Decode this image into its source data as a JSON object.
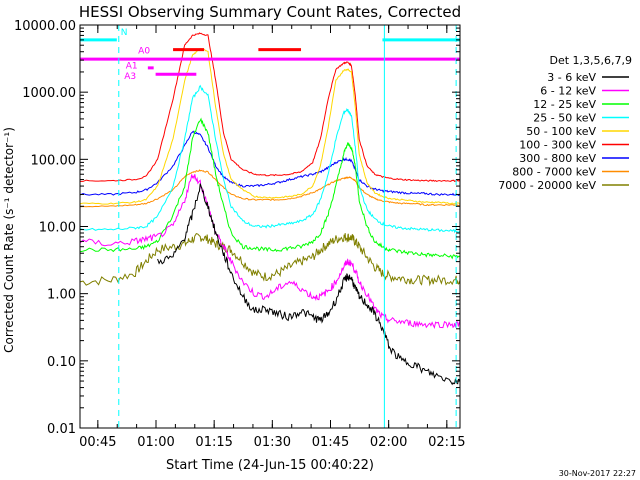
{
  "chart_data": {
    "type": "line",
    "title": "HESSI Observing Summary Count Rates, Corrected",
    "xlabel": "Start Time (24-Jun-15 00:40:22)",
    "ylabel": "Corrected Count Rate (s⁻¹ detector⁻¹)",
    "yscale": "log",
    "ylim": [
      0.01,
      10000
    ],
    "xlim_minutes_after_start": [
      0,
      98
    ],
    "x_tick_labels": [
      "00:45",
      "01:00",
      "01:15",
      "01:30",
      "01:45",
      "02:00",
      "02:15"
    ],
    "x_tick_minutes": [
      4.6,
      19.6,
      34.6,
      49.6,
      64.6,
      79.6,
      94.6
    ],
    "y_tick_labels": [
      "10000.00",
      "1000.00",
      "100.00",
      "10.00",
      "1.00",
      "0.10",
      "0.01"
    ],
    "y_tick_values": [
      10000,
      1000,
      100,
      10,
      1,
      0.1,
      0.01
    ],
    "legend_title": "Det 1,3,5,6,7,9",
    "legend_position": "right",
    "footer_date": "30-Nov-2017 22:27",
    "x": [
      0,
      8,
      14,
      17,
      20,
      24,
      27,
      29,
      31,
      33,
      35,
      37,
      39,
      42,
      45,
      48,
      51,
      54,
      57,
      60,
      62,
      64,
      66,
      68,
      69,
      70,
      71,
      72,
      74,
      76,
      78,
      80,
      83,
      86,
      89,
      92,
      96,
      98
    ],
    "series": [
      {
        "name": "3 - 6 keV",
        "color": "#000000",
        "values": [
          null,
          null,
          null,
          null,
          3,
          3.5,
          7,
          15,
          40,
          20,
          8,
          4,
          2,
          0.9,
          0.55,
          0.6,
          0.5,
          0.45,
          0.55,
          0.45,
          0.4,
          0.5,
          0.8,
          1.5,
          1.8,
          1.7,
          1.2,
          0.9,
          0.7,
          0.5,
          0.3,
          0.15,
          0.1,
          0.09,
          0.07,
          0.06,
          0.05,
          0.05
        ]
      },
      {
        "name": "6 - 12 keV",
        "color": "#ff00ff",
        "values": [
          6,
          5.5,
          6,
          6.5,
          7,
          10,
          25,
          60,
          45,
          20,
          8,
          5,
          3,
          1.5,
          1,
          0.9,
          1.2,
          1.5,
          1.2,
          0.9,
          0.9,
          1.1,
          1.5,
          2.5,
          3,
          2.8,
          2.2,
          1.5,
          1,
          0.6,
          0.45,
          0.4,
          0.38,
          0.36,
          0.35,
          0.35,
          0.35,
          0.35
        ]
      },
      {
        "name": "12 - 25 keV",
        "color": "#00ff00",
        "values": [
          4.5,
          4.5,
          4.6,
          5,
          6,
          15,
          40,
          200,
          400,
          250,
          60,
          20,
          8,
          5,
          4.8,
          4.5,
          4.5,
          4.8,
          5,
          6,
          8,
          15,
          40,
          120,
          170,
          150,
          80,
          25,
          10,
          6,
          5,
          4.5,
          4.2,
          4,
          3.8,
          3.7,
          3.6,
          3.6
        ]
      },
      {
        "name": "25 - 50 keV",
        "color": "#00ffff",
        "values": [
          9,
          9,
          9.5,
          10,
          14,
          40,
          200,
          800,
          1200,
          900,
          200,
          50,
          20,
          12,
          10,
          10,
          10.5,
          11,
          12,
          15,
          25,
          60,
          200,
          500,
          550,
          450,
          150,
          40,
          18,
          13,
          11,
          10,
          9.5,
          9.2,
          9,
          8.8,
          8.6,
          8.5
        ]
      },
      {
        "name": "50 - 100 keV",
        "color": "#ffd700",
        "values": [
          22,
          22,
          23,
          25,
          40,
          200,
          1500,
          3500,
          4500,
          4000,
          600,
          120,
          50,
          35,
          28,
          27,
          27,
          28,
          30,
          40,
          80,
          300,
          1500,
          2100,
          2200,
          2000,
          600,
          120,
          45,
          32,
          28,
          26,
          25,
          24,
          23,
          23,
          22,
          22
        ]
      },
      {
        "name": "100 - 300 keV",
        "color": "#ff0000",
        "values": [
          48,
          48,
          50,
          55,
          100,
          800,
          5000,
          7000,
          7500,
          7000,
          1500,
          250,
          100,
          70,
          60,
          58,
          58,
          60,
          65,
          90,
          200,
          800,
          2200,
          2700,
          2800,
          2500,
          900,
          200,
          80,
          60,
          55,
          52,
          50,
          49,
          48,
          48,
          48,
          48
        ]
      },
      {
        "name": "300 - 800 keV",
        "color": "#0000ff",
        "values": [
          30,
          30,
          32,
          35,
          45,
          80,
          160,
          260,
          230,
          150,
          80,
          55,
          45,
          40,
          40,
          42,
          45,
          50,
          55,
          60,
          65,
          75,
          90,
          100,
          100,
          95,
          70,
          50,
          40,
          36,
          34,
          33,
          32,
          31,
          31,
          30,
          30,
          30
        ]
      },
      {
        "name": "800 - 7000 keV",
        "color": "#ff8c00",
        "values": [
          20,
          20,
          21,
          22,
          26,
          35,
          55,
          65,
          68,
          65,
          50,
          38,
          30,
          26,
          25,
          25,
          25,
          26,
          28,
          32,
          36,
          42,
          48,
          52,
          54,
          53,
          48,
          38,
          30,
          26,
          24,
          23,
          22,
          22,
          21,
          21,
          21,
          21
        ]
      },
      {
        "name": "7000 - 20000 keV",
        "color": "#808000",
        "values": [
          1.5,
          1.6,
          2,
          3,
          4.5,
          5,
          5.5,
          6.5,
          7,
          6.5,
          5.5,
          5,
          4.5,
          3,
          2,
          1.8,
          2,
          2.5,
          3,
          3.5,
          4.5,
          5.5,
          6.5,
          7,
          7,
          6.8,
          6,
          5,
          3.5,
          2.5,
          2,
          1.8,
          1.7,
          1.6,
          1.6,
          1.6,
          1.6,
          1.6
        ]
      }
    ],
    "annotations": {
      "state_bar_labels": [
        "N",
        "A0",
        "A1",
        "A3"
      ],
      "state_bars": [
        {
          "label": "N",
          "color": "#00ffff",
          "value": 6000,
          "x": [
            0,
            9.5
          ]
        },
        {
          "label": "N",
          "color": "#00ffff",
          "value": 6000,
          "x": [
            78,
            98
          ]
        },
        {
          "label": "A0",
          "color": "#ff00ff",
          "value": 3100,
          "x": [
            0,
            98
          ]
        },
        {
          "label": "A1",
          "color": "#ff00ff",
          "value": 2300,
          "x": [
            17.5,
            19
          ]
        },
        {
          "label": "A3",
          "color": "#ff00ff",
          "value": 1850,
          "x": [
            19.5,
            30
          ]
        },
        {
          "label": "",
          "color": "#ff0000",
          "value": 4300,
          "x": [
            24,
            32
          ]
        },
        {
          "label": "",
          "color": "#ff0000",
          "value": 4300,
          "x": [
            46,
            57
          ]
        }
      ],
      "vertical_lines": [
        {
          "color": "#00ffff",
          "style": "dashed",
          "x": 10
        },
        {
          "color": "#00ffff",
          "style": "solid",
          "x": 78.5
        },
        {
          "color": "#00ffff",
          "style": "dashed",
          "x": 97
        }
      ]
    }
  }
}
